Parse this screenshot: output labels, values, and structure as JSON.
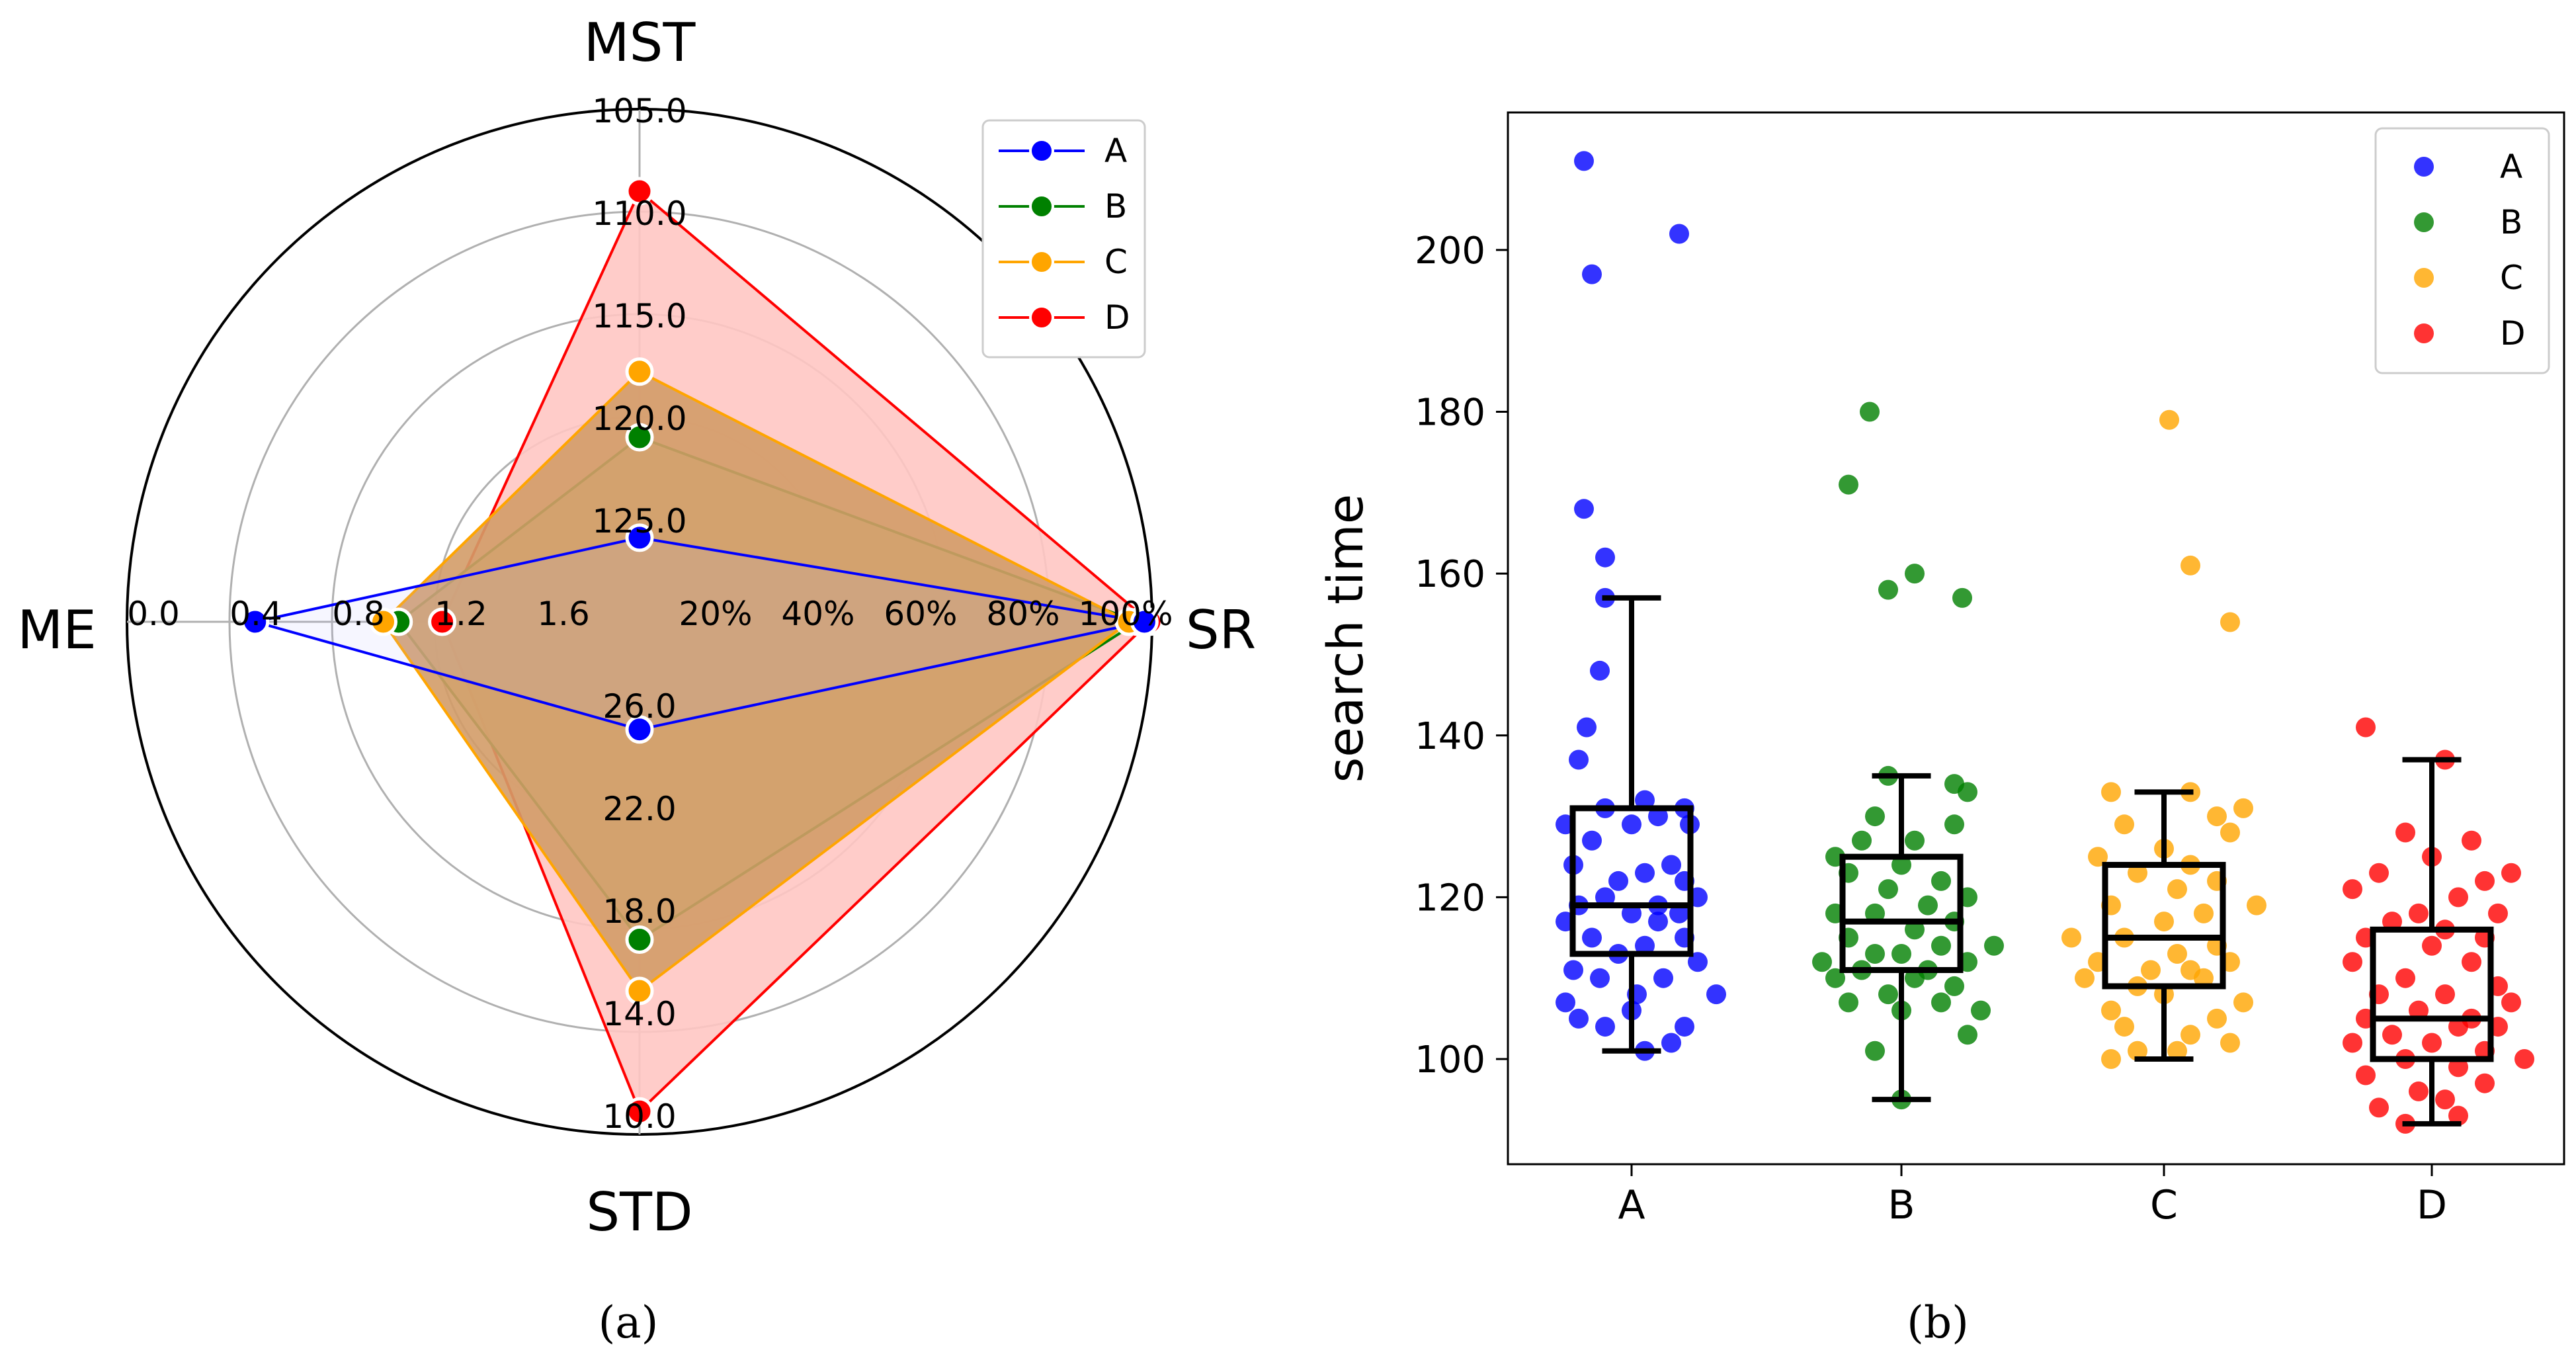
{
  "chart_data": [
    {
      "type": "radar",
      "caption": "(a)",
      "axes": [
        {
          "name": "MST",
          "ticks": [
            "105.0",
            "110.0",
            "115.0",
            "120.0",
            "125.0"
          ],
          "range": [
            130,
            105
          ]
        },
        {
          "name": "SR",
          "ticks": [
            "20%",
            "40%",
            "60%",
            "80%",
            "100%"
          ],
          "range": [
            0,
            100
          ]
        },
        {
          "name": "STD",
          "ticks": [
            "26.0",
            "22.0",
            "18.0",
            "14.0",
            "10.0"
          ],
          "range": [
            30,
            10
          ]
        },
        {
          "name": "ME",
          "ticks": [
            "0.0",
            "0.4",
            "0.8",
            "1.2",
            "1.6"
          ],
          "range": [
            2.0,
            0.0
          ]
        }
      ],
      "series": [
        {
          "name": "A",
          "color": "#0000ff",
          "fill": false,
          "values": {
            "MST": 125.9,
            "SR": 98.5,
            "STD": 25.8,
            "ME": 0.5
          }
        },
        {
          "name": "B",
          "color": "#008000",
          "fill": true,
          "fill_color": "#cdd7a0",
          "values": {
            "MST": 121.0,
            "SR": 97.2,
            "STD": 17.6,
            "ME": 1.06
          }
        },
        {
          "name": "C",
          "color": "#ffa500",
          "fill": true,
          "fill_color": "#d39c68",
          "values": {
            "MST": 117.8,
            "SR": 95.5,
            "STD": 15.6,
            "ME": 1.0
          }
        },
        {
          "name": "D",
          "color": "#ff0000",
          "fill": true,
          "fill_color": "#ffc7c3",
          "values": {
            "MST": 109.0,
            "SR": 99.5,
            "STD": 10.9,
            "ME": 1.23
          }
        }
      ],
      "legend": [
        "A",
        "B",
        "C",
        "D"
      ],
      "legend_location": "top-right"
    },
    {
      "type": "box-strip",
      "caption": "(b)",
      "ylabel": "search time",
      "categories": [
        "A",
        "B",
        "C",
        "D"
      ],
      "yticks": [
        "100",
        "120",
        "140",
        "160",
        "180",
        "200"
      ],
      "ylim": [
        87,
        217
      ],
      "colors": {
        "A": "#0000ff",
        "B": "#008000",
        "C": "#ffa500",
        "D": "#ff0000"
      },
      "boxes": [
        {
          "name": "A",
          "whisker_low": 101,
          "q1": 113,
          "median": 119,
          "q3": 131,
          "whisker_high": 157
        },
        {
          "name": "B",
          "whisker_low": 95,
          "q1": 111,
          "median": 117,
          "q3": 125,
          "whisker_high": 135
        },
        {
          "name": "C",
          "whisker_low": 100,
          "q1": 109,
          "median": 115,
          "q3": 124,
          "whisker_high": 133
        },
        {
          "name": "D",
          "whisker_low": 92,
          "q1": 100,
          "median": 105,
          "q3": 116,
          "whisker_high": 137
        }
      ],
      "points": {
        "A": [
          [
            -0.18,
            211
          ],
          [
            0.18,
            202
          ],
          [
            -0.15,
            197
          ],
          [
            -0.18,
            168
          ],
          [
            -0.1,
            162
          ],
          [
            -0.1,
            157
          ],
          [
            -0.12,
            148
          ],
          [
            -0.17,
            141
          ],
          [
            -0.2,
            137
          ],
          [
            0.05,
            132
          ],
          [
            0.2,
            131
          ],
          [
            -0.1,
            131
          ],
          [
            -0.25,
            129
          ],
          [
            0.1,
            130
          ],
          [
            0.22,
            129
          ],
          [
            0.0,
            129
          ],
          [
            -0.15,
            127
          ],
          [
            -0.22,
            124
          ],
          [
            0.15,
            124
          ],
          [
            0.05,
            123
          ],
          [
            -0.05,
            122
          ],
          [
            0.2,
            122
          ],
          [
            -0.1,
            120
          ],
          [
            0.25,
            120
          ],
          [
            0.1,
            119
          ],
          [
            -0.2,
            119
          ],
          [
            0.0,
            118
          ],
          [
            0.18,
            118
          ],
          [
            -0.25,
            117
          ],
          [
            0.1,
            117
          ],
          [
            -0.15,
            115
          ],
          [
            0.2,
            115
          ],
          [
            0.05,
            114
          ],
          [
            -0.05,
            113
          ],
          [
            0.25,
            112
          ],
          [
            -0.22,
            111
          ],
          [
            0.12,
            110
          ],
          [
            -0.12,
            110
          ],
          [
            0.02,
            108
          ],
          [
            0.32,
            108
          ],
          [
            -0.25,
            107
          ],
          [
            0.0,
            106
          ],
          [
            -0.2,
            105
          ],
          [
            0.2,
            104
          ],
          [
            -0.1,
            104
          ],
          [
            0.15,
            102
          ],
          [
            0.05,
            101
          ]
        ],
        "B": [
          [
            -0.12,
            180
          ],
          [
            -0.2,
            171
          ],
          [
            0.05,
            160
          ],
          [
            -0.05,
            158
          ],
          [
            0.23,
            157
          ],
          [
            -0.05,
            135
          ],
          [
            0.2,
            134
          ],
          [
            0.25,
            133
          ],
          [
            -0.1,
            130
          ],
          [
            0.2,
            129
          ],
          [
            -0.15,
            127
          ],
          [
            0.05,
            127
          ],
          [
            -0.25,
            125
          ],
          [
            0.0,
            124
          ],
          [
            -0.2,
            123
          ],
          [
            0.15,
            122
          ],
          [
            -0.05,
            121
          ],
          [
            0.25,
            120
          ],
          [
            0.1,
            119
          ],
          [
            -0.25,
            118
          ],
          [
            -0.1,
            118
          ],
          [
            0.2,
            117
          ],
          [
            0.05,
            116
          ],
          [
            -0.2,
            115
          ],
          [
            0.35,
            114
          ],
          [
            0.15,
            114
          ],
          [
            -0.1,
            113
          ],
          [
            0.0,
            113
          ],
          [
            -0.3,
            112
          ],
          [
            0.25,
            112
          ],
          [
            0.1,
            111
          ],
          [
            -0.15,
            111
          ],
          [
            0.05,
            110
          ],
          [
            -0.25,
            110
          ],
          [
            0.2,
            109
          ],
          [
            -0.05,
            108
          ],
          [
            0.15,
            107
          ],
          [
            -0.2,
            107
          ],
          [
            0.3,
            106
          ],
          [
            0.0,
            106
          ],
          [
            0.25,
            103
          ],
          [
            -0.1,
            101
          ],
          [
            0.0,
            95
          ]
        ],
        "C": [
          [
            0.02,
            179
          ],
          [
            0.1,
            161
          ],
          [
            0.25,
            154
          ],
          [
            -0.2,
            133
          ],
          [
            0.1,
            133
          ],
          [
            0.3,
            131
          ],
          [
            0.2,
            130
          ],
          [
            -0.15,
            129
          ],
          [
            0.25,
            128
          ],
          [
            0.0,
            126
          ],
          [
            -0.25,
            125
          ],
          [
            0.1,
            124
          ],
          [
            -0.1,
            123
          ],
          [
            0.2,
            122
          ],
          [
            0.05,
            121
          ],
          [
            0.35,
            119
          ],
          [
            -0.2,
            119
          ],
          [
            0.15,
            118
          ],
          [
            0.0,
            117
          ],
          [
            -0.35,
            115
          ],
          [
            -0.15,
            115
          ],
          [
            0.2,
            114
          ],
          [
            0.05,
            113
          ],
          [
            -0.25,
            112
          ],
          [
            0.25,
            112
          ],
          [
            0.1,
            111
          ],
          [
            -0.05,
            111
          ],
          [
            -0.3,
            110
          ],
          [
            0.15,
            110
          ],
          [
            -0.1,
            109
          ],
          [
            0.0,
            108
          ],
          [
            0.3,
            107
          ],
          [
            -0.2,
            106
          ],
          [
            0.2,
            105
          ],
          [
            -0.15,
            104
          ],
          [
            0.1,
            103
          ],
          [
            0.25,
            102
          ],
          [
            -0.1,
            101
          ],
          [
            0.05,
            101
          ],
          [
            -0.2,
            100
          ]
        ],
        "D": [
          [
            -0.25,
            141
          ],
          [
            0.05,
            137
          ],
          [
            -0.1,
            128
          ],
          [
            0.15,
            127
          ],
          [
            0.0,
            125
          ],
          [
            0.3,
            123
          ],
          [
            -0.2,
            123
          ],
          [
            0.2,
            122
          ],
          [
            -0.3,
            121
          ],
          [
            0.1,
            120
          ],
          [
            -0.05,
            118
          ],
          [
            0.25,
            118
          ],
          [
            -0.15,
            117
          ],
          [
            0.05,
            116
          ],
          [
            -0.25,
            115
          ],
          [
            0.2,
            115
          ],
          [
            0.0,
            114
          ],
          [
            -0.3,
            112
          ],
          [
            0.15,
            112
          ],
          [
            -0.1,
            110
          ],
          [
            0.25,
            109
          ],
          [
            0.05,
            108
          ],
          [
            -0.2,
            108
          ],
          [
            0.3,
            107
          ],
          [
            -0.05,
            106
          ],
          [
            0.15,
            105
          ],
          [
            -0.25,
            105
          ],
          [
            0.1,
            104
          ],
          [
            0.25,
            104
          ],
          [
            -0.15,
            103
          ],
          [
            0.0,
            102
          ],
          [
            -0.3,
            102
          ],
          [
            0.2,
            101
          ],
          [
            0.35,
            100
          ],
          [
            -0.1,
            100
          ],
          [
            0.1,
            99
          ],
          [
            -0.25,
            98
          ],
          [
            0.2,
            97
          ],
          [
            -0.05,
            96
          ],
          [
            0.05,
            95
          ],
          [
            -0.2,
            94
          ],
          [
            0.1,
            93
          ],
          [
            -0.1,
            92
          ]
        ]
      },
      "legend": [
        "A",
        "B",
        "C",
        "D"
      ],
      "legend_location": "top-right"
    }
  ]
}
